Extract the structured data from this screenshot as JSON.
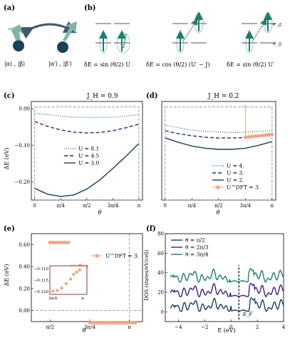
{
  "panels": {
    "a": {
      "label": "(a)",
      "left_state": "|α⟩ , |β⟩",
      "right_state": "|α′⟩ , |β′⟩"
    },
    "b": {
      "label": "(b)",
      "eg": "e_g",
      "ag": "a_g",
      "formulas": [
        {
          "text": "δE = sin (θ/2) U"
        },
        {
          "text": "δE = cos (θ/2) (U′ − J)"
        },
        {
          "text": "δE = sin (θ/2) U′"
        }
      ]
    },
    "c": {
      "label": "(c)",
      "title": "J_H = 0.9",
      "ylabel": "ΔE (eV)",
      "xlabel": "θ"
    },
    "d": {
      "label": "(d)",
      "title": "J_H = 0.2",
      "xlabel": "θ"
    },
    "e": {
      "label": "(e)",
      "ylabel": "ΔE (eV)",
      "xlabel": "θ"
    },
    "f": {
      "label": "(f)",
      "ylabel": "DOS (states/eV/cell)",
      "xlabel": "E (eV)",
      "ef": "E_F"
    }
  },
  "chart_data": [
    {
      "id": "c",
      "type": "line",
      "title": "J_H = 0.9",
      "xlabel": "θ",
      "ylabel": "ΔE (eV)",
      "xlim": [
        0,
        3.1416
      ],
      "ylim": [
        -0.25,
        0.02
      ],
      "xticks": [
        "0",
        "π/4",
        "π/2",
        "3π/4",
        "π"
      ],
      "yticks": [
        "0.00",
        "−0.10",
        "−0.20"
      ],
      "legend_position": "center-left",
      "series": [
        {
          "name": "U = 8.1",
          "color": "#2e8b57",
          "style": "dotted",
          "x": [
            0,
            0.39,
            0.79,
            1.18,
            1.57,
            1.96,
            2.36,
            2.75,
            3.14
          ],
          "y": [
            -0.012,
            -0.016,
            -0.02,
            -0.023,
            -0.024,
            -0.024,
            -0.023,
            -0.02,
            -0.016
          ]
        },
        {
          "name": "U = 4.5",
          "color": "#2d2a7a",
          "style": "dashed",
          "x": [
            0,
            0.39,
            0.79,
            1.18,
            1.57,
            1.96,
            2.36,
            2.75,
            3.14
          ],
          "y": [
            -0.035,
            -0.048,
            -0.058,
            -0.064,
            -0.066,
            -0.065,
            -0.06,
            -0.052,
            -0.042
          ]
        },
        {
          "name": "U = 3.0",
          "color": "#17405a",
          "style": "solid",
          "x": [
            0,
            0.39,
            0.79,
            1.18,
            1.57,
            1.96,
            2.36,
            2.75,
            3.14
          ],
          "y": [
            -0.218,
            -0.234,
            -0.24,
            -0.236,
            -0.22,
            -0.195,
            -0.163,
            -0.13,
            -0.095
          ]
        }
      ]
    },
    {
      "id": "d",
      "type": "line",
      "title": "J_H = 0.2",
      "xlabel": "θ",
      "xlim": [
        0,
        3.1416
      ],
      "ylim": [
        -0.25,
        0.02
      ],
      "xticks": [
        "0",
        "π/4",
        "π/2",
        "3π/4",
        "π"
      ],
      "legend_position": "bottom-right",
      "series": [
        {
          "name": "U = 4.",
          "color": "#2e8b57",
          "style": "dotted",
          "x": [
            0,
            0.39,
            0.79,
            1.18,
            1.57,
            1.96,
            2.36,
            2.75,
            3.14
          ],
          "y": [
            -0.045,
            -0.052,
            -0.058,
            -0.062,
            -0.064,
            -0.065,
            -0.064,
            -0.062,
            -0.06
          ]
        },
        {
          "name": "U = 3.",
          "color": "#2d2a7a",
          "style": "dashed",
          "x": [
            0,
            0.39,
            0.79,
            1.18,
            1.57,
            1.96,
            2.36,
            2.75,
            3.14
          ],
          "y": [
            -0.06,
            -0.068,
            -0.074,
            -0.078,
            -0.08,
            -0.08,
            -0.079,
            -0.076,
            -0.072
          ]
        },
        {
          "name": "U = 2.",
          "color": "#17405a",
          "style": "solid",
          "x": [
            0,
            0.39,
            0.79,
            1.18,
            1.57,
            1.96,
            2.36,
            2.75,
            3.14
          ],
          "y": [
            -0.08,
            -0.092,
            -0.102,
            -0.108,
            -0.111,
            -0.111,
            -0.108,
            -0.1,
            -0.09
          ]
        },
        {
          "name": "U^DFT = 3.",
          "color": "#f4a582",
          "style": "markers",
          "x": [
            2.36,
            2.45,
            2.55,
            2.65,
            2.75,
            2.85,
            2.95,
            3.05,
            3.14
          ],
          "y": [
            -0.078,
            -0.077,
            -0.076,
            -0.075,
            -0.074,
            -0.073,
            -0.072,
            -0.071,
            -0.07
          ]
        }
      ]
    },
    {
      "id": "e",
      "type": "scatter",
      "xlabel": "θ",
      "ylabel": "ΔE (eV)",
      "xlim": [
        1.2,
        3.4
      ],
      "ylim": [
        -0.1,
        0.7
      ],
      "xticks": [
        "π/2",
        "3π/4",
        "π"
      ],
      "yticks": [
        "0.00",
        "0.20",
        "0.40",
        "0.60"
      ],
      "legend_position": "top-right",
      "series": [
        {
          "name": "U^DFT = 3.",
          "color": "#f4a582",
          "x": [
            1.57,
            1.63,
            1.69,
            1.75,
            1.81,
            1.87,
            1.93,
            1.99,
            2.05,
            2.11,
            2.17,
            2.23,
            2.29,
            2.36,
            2.42,
            2.48,
            2.54,
            2.6,
            2.66,
            2.72,
            2.78,
            2.84,
            2.9,
            2.96,
            3.02,
            3.08,
            3.14,
            3.2,
            3.26
          ],
          "y": [
            0.62,
            0.62,
            0.62,
            0.62,
            0.62,
            0.62,
            0.62,
            0.4,
            0.4,
            0.4,
            0.41,
            0.4,
            0.4,
            -0.11,
            -0.11,
            -0.11,
            -0.11,
            -0.11,
            -0.11,
            -0.11,
            -0.11,
            -0.11,
            -0.11,
            -0.11,
            -0.11,
            -0.11,
            -0.11,
            -0.11,
            -0.11
          ]
        }
      ],
      "inset": {
        "yticks": [
          "−0.110",
          "−0.115",
          "−0.120"
        ],
        "xticks": [
          "3π/4",
          "π"
        ]
      }
    },
    {
      "id": "f",
      "type": "line",
      "xlabel": "E (eV)",
      "ylabel": "DOS (states/eV/cell)",
      "xlim": [
        -5,
        4
      ],
      "ylim": [
        -10,
        80
      ],
      "xticks": [
        "−4",
        "−2",
        "0",
        "2",
        "4"
      ],
      "yticks": [
        "0",
        "20",
        "40",
        "60",
        "80"
      ],
      "legend_position": "top-left",
      "series": [
        {
          "name": "θ = π/2",
          "color": "#17405a",
          "offset": 0
        },
        {
          "name": "θ = 2π/3",
          "color": "#3b1f8a",
          "offset": 15
        },
        {
          "name": "θ = 3π/4",
          "color": "#1b7f6b",
          "offset": 30
        }
      ]
    }
  ]
}
